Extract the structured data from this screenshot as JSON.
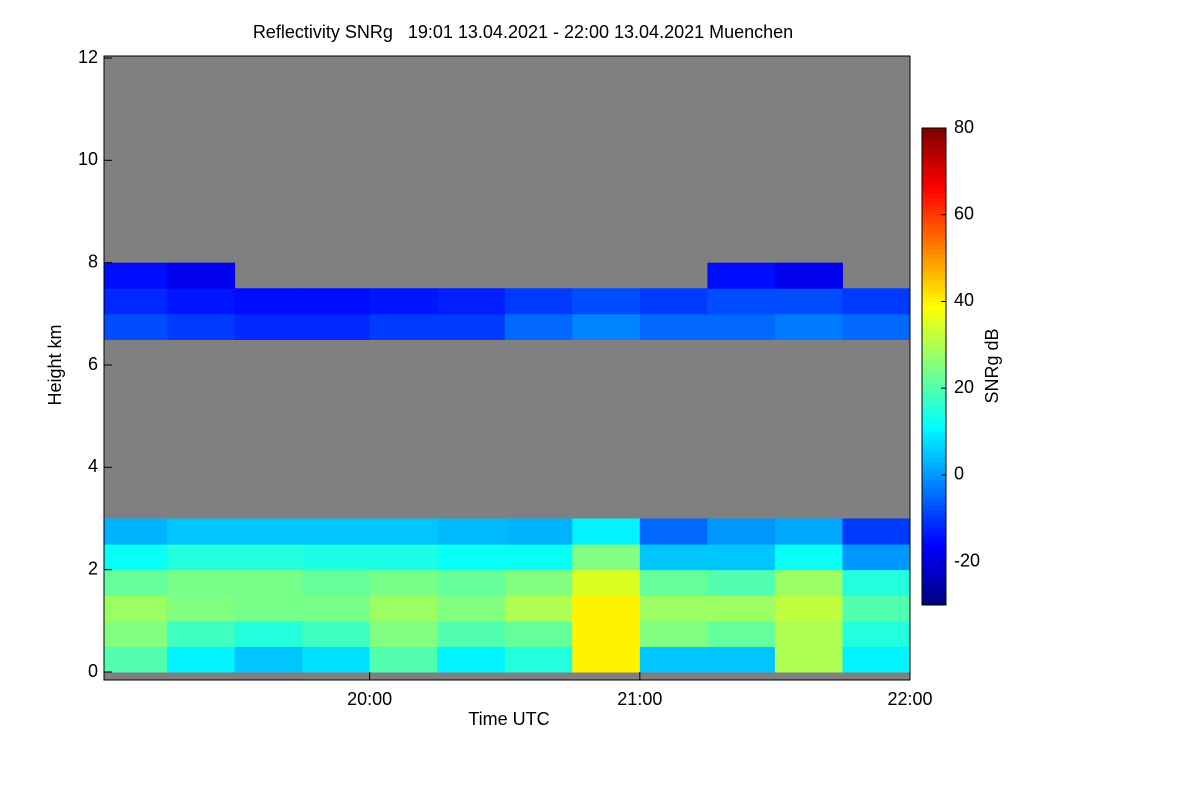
{
  "chart_data": {
    "type": "heatmap",
    "title": "Reflectivity SNRg   19:01 13.04.2021 - 22:00 13.04.2021 Muenchen",
    "xlabel": "Time UTC",
    "ylabel": "Height km",
    "colorbar_label": "SNRg dB",
    "x": [
      19.0167,
      19.25,
      19.5,
      19.75,
      20,
      20.25,
      20.5,
      20.75,
      21,
      21.25,
      21.5,
      21.75,
      22
    ],
    "y": [
      0,
      0.5,
      1,
      1.5,
      2,
      2.5,
      3,
      3.5,
      4,
      4.5,
      5,
      5.5,
      6,
      6.5,
      7,
      7.5,
      8,
      8.5,
      9,
      9.5,
      10,
      10.5,
      11,
      11.5,
      12
    ],
    "values": [
      [
        20,
        10,
        5,
        8,
        20,
        10,
        15,
        40,
        5,
        5,
        30,
        10
      ],
      [
        25,
        18,
        15,
        18,
        25,
        20,
        22,
        40,
        25,
        22,
        30,
        15
      ],
      [
        28,
        25,
        24,
        24,
        28,
        25,
        30,
        40,
        28,
        28,
        32,
        20
      ],
      [
        22,
        24,
        24,
        22,
        24,
        22,
        25,
        35,
        22,
        20,
        28,
        15
      ],
      [
        12,
        15,
        15,
        14,
        14,
        12,
        12,
        25,
        5,
        5,
        12,
        0
      ],
      [
        3,
        5,
        5,
        5,
        5,
        4,
        3,
        10,
        -5,
        0,
        2,
        -10
      ],
      [
        null,
        null,
        null,
        null,
        null,
        null,
        null,
        null,
        null,
        null,
        null,
        null
      ],
      [
        null,
        null,
        null,
        null,
        null,
        null,
        null,
        null,
        null,
        null,
        null,
        null
      ],
      [
        null,
        null,
        null,
        null,
        null,
        null,
        null,
        null,
        null,
        null,
        null,
        null
      ],
      [
        null,
        null,
        null,
        null,
        null,
        null,
        null,
        null,
        null,
        null,
        null,
        null
      ],
      [
        null,
        null,
        null,
        null,
        null,
        null,
        null,
        null,
        null,
        null,
        null,
        null
      ],
      [
        null,
        null,
        null,
        null,
        null,
        null,
        null,
        null,
        null,
        null,
        null,
        null
      ],
      [
        null,
        null,
        null,
        null,
        null,
        null,
        null,
        null,
        null,
        null,
        null,
        null
      ],
      [
        -8,
        -10,
        -12,
        -12,
        -10,
        -10,
        -5,
        -2,
        -5,
        -5,
        -3,
        -5
      ],
      [
        -12,
        -14,
        -15,
        -15,
        -14,
        -13,
        -10,
        -8,
        -10,
        -8,
        -8,
        -10
      ],
      [
        -15,
        -18,
        null,
        null,
        null,
        null,
        null,
        null,
        null,
        -15,
        -18,
        null
      ],
      [
        null,
        null,
        null,
        null,
        null,
        null,
        null,
        null,
        null,
        null,
        null,
        null
      ],
      [
        null,
        null,
        null,
        null,
        null,
        null,
        null,
        null,
        null,
        null,
        null,
        null
      ],
      [
        null,
        null,
        null,
        null,
        null,
        null,
        null,
        null,
        null,
        null,
        null,
        null
      ],
      [
        null,
        null,
        null,
        null,
        null,
        null,
        null,
        null,
        null,
        null,
        null,
        null
      ],
      [
        null,
        null,
        null,
        null,
        null,
        null,
        null,
        null,
        null,
        null,
        null,
        null
      ],
      [
        null,
        null,
        null,
        null,
        null,
        null,
        null,
        null,
        null,
        null,
        null,
        null
      ],
      [
        null,
        null,
        null,
        null,
        null,
        null,
        null,
        null,
        null,
        null,
        null,
        null
      ],
      [
        null,
        null,
        null,
        null,
        null,
        null,
        null,
        null,
        null,
        null,
        null,
        null
      ]
    ],
    "xlim": [
      19.0167,
      22
    ],
    "xticks": [
      {
        "value": 20,
        "label": "20:00"
      },
      {
        "value": 21,
        "label": "21:00"
      },
      {
        "value": 22,
        "label": "22:00"
      }
    ],
    "ylim": [
      0,
      12
    ],
    "yticks": [
      0,
      2,
      4,
      6,
      8,
      10,
      12
    ],
    "zlim": [
      -30,
      80
    ],
    "zticks": [
      -20,
      0,
      20,
      40,
      60,
      80
    ],
    "colormap": "jet",
    "background": "#808080"
  }
}
